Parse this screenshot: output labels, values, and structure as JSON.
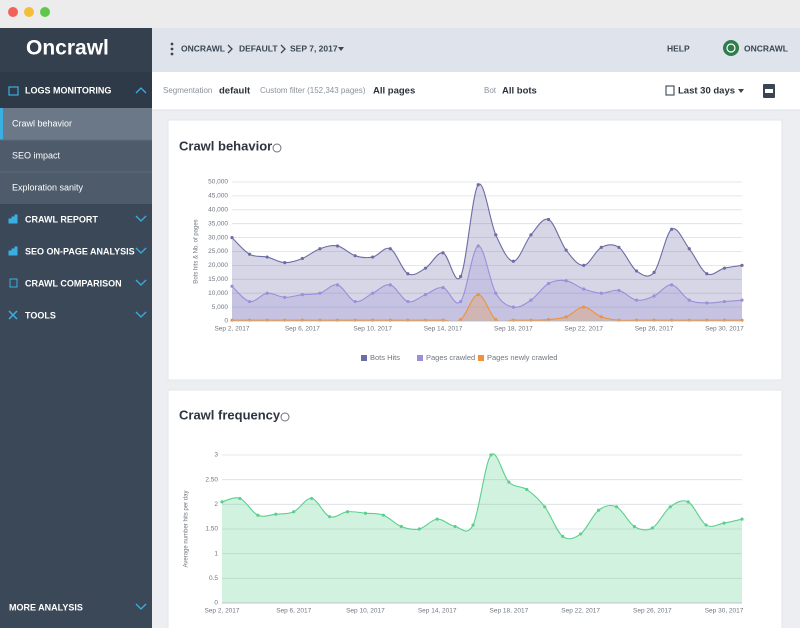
{
  "sidebar": {
    "logo": "Oncrawl",
    "sections": [
      {
        "label": "LOGS MONITORING",
        "items": [
          "Crawl behavior",
          "SEO impact",
          "Exploration sanity"
        ]
      },
      {
        "label": "CRAWL REPORT"
      },
      {
        "label": "SEO ON-PAGE ANALYSIS"
      },
      {
        "label": "CRAWL COMPARISON"
      },
      {
        "label": "TOOLS"
      }
    ],
    "footer": "MORE ANALYSIS"
  },
  "header": {
    "breadcrumb": [
      "ONCRAWL",
      "DEFAULT",
      "SEP 7, 2017"
    ],
    "help": "HELP",
    "account": "ONCRAWL"
  },
  "filters": {
    "segmentation_label": "Segmentation",
    "segmentation": "default",
    "custom_filter_label": "Custom filter (152,343 pages)",
    "custom_filter": "All pages",
    "bot_label": "Bot",
    "bot": "All bots",
    "period": "Last 30 days"
  },
  "chart_data": [
    {
      "type": "area",
      "title": "Crawl behavior",
      "y_label": "Bots hits & Nb. of pages",
      "categories": [
        "Sep 2, 2017",
        null,
        null,
        null,
        "Sep 6, 2017",
        null,
        null,
        null,
        "Sep 10, 2017",
        null,
        null,
        null,
        "Sep 14, 2017",
        null,
        null,
        null,
        "Sep 18, 2017",
        null,
        null,
        null,
        "Sep 22, 2017",
        null,
        null,
        null,
        "Sep 26, 2017",
        null,
        null,
        null,
        "Sep 30, 2017",
        null
      ],
      "series": [
        {
          "name": "Bots Hits",
          "color": "#6d6ca6",
          "values": [
            30000,
            24000,
            23000,
            21000,
            22500,
            26000,
            27000,
            23500,
            23000,
            26000,
            17000,
            19000,
            24500,
            16000,
            49000,
            31000,
            21500,
            31000,
            36500,
            25500,
            20000,
            26500,
            26500,
            18000,
            17500,
            33000,
            26000,
            17000,
            19000,
            20000
          ]
        },
        {
          "name": "Pages crawled",
          "color": "#9b8fd8",
          "values": [
            12500,
            7000,
            10000,
            8500,
            9500,
            10000,
            13000,
            7000,
            10000,
            13000,
            7000,
            9500,
            12000,
            7000,
            27000,
            10000,
            5000,
            7500,
            13500,
            14500,
            11500,
            10000,
            11000,
            7500,
            9000,
            13000,
            7500,
            6500,
            7000,
            7500
          ]
        },
        {
          "name": "Pages newly crawled",
          "color": "#f0923a",
          "values": [
            300,
            300,
            300,
            300,
            300,
            300,
            300,
            300,
            300,
            300,
            300,
            300,
            300,
            500,
            9500,
            500,
            300,
            300,
            500,
            1500,
            5000,
            1500,
            300,
            300,
            300,
            300,
            300,
            300,
            300,
            300
          ]
        }
      ],
      "ylim": [
        0,
        50000
      ],
      "yticks": [
        0,
        {
          "value": 5000,
          "label": "5,000"
        },
        {
          "value": 10000,
          "label": "10,000"
        },
        {
          "value": 15000,
          "label": "15,000"
        },
        {
          "value": 20000,
          "label": "20,000"
        },
        {
          "value": 25000,
          "label": "25,000"
        },
        {
          "value": 30000,
          "label": "30,000"
        },
        {
          "value": 35000,
          "label": "35,000"
        },
        {
          "value": 40000,
          "label": "40,000"
        },
        {
          "value": 45000,
          "label": "45,000"
        },
        {
          "value": 50000,
          "label": "50,000"
        }
      ],
      "grid": true,
      "legend": "bottom"
    },
    {
      "type": "area",
      "title": "Crawl frequency",
      "y_label": "Average number hits per day",
      "categories": [
        "Sep 2, 2017",
        null,
        null,
        null,
        "Sep 6, 2017",
        null,
        null,
        null,
        "Sep 10, 2017",
        null,
        null,
        null,
        "Sep 14, 2017",
        null,
        null,
        null,
        "Sep 18, 2017",
        null,
        null,
        null,
        "Sep 22, 2017",
        null,
        null,
        null,
        "Sep 26, 2017",
        null,
        null,
        null,
        "Sep 30, 2017",
        null
      ],
      "values": [
        2.05,
        2.12,
        1.78,
        1.8,
        1.85,
        2.12,
        1.75,
        1.85,
        1.82,
        1.78,
        1.55,
        1.5,
        1.7,
        1.55,
        1.58,
        3.0,
        2.45,
        2.3,
        1.95,
        1.35,
        1.4,
        1.88,
        1.95,
        1.55,
        1.52,
        1.95,
        2.05,
        1.58,
        1.62,
        1.7
      ],
      "color": "#5ccf8f",
      "ylim": [
        0,
        3
      ],
      "yticks": [
        0,
        0.5,
        1,
        {
          "value": 1.5,
          "label": "1.50"
        },
        2,
        {
          "value": 2.5,
          "label": "2.50"
        },
        3
      ],
      "grid": true
    }
  ]
}
